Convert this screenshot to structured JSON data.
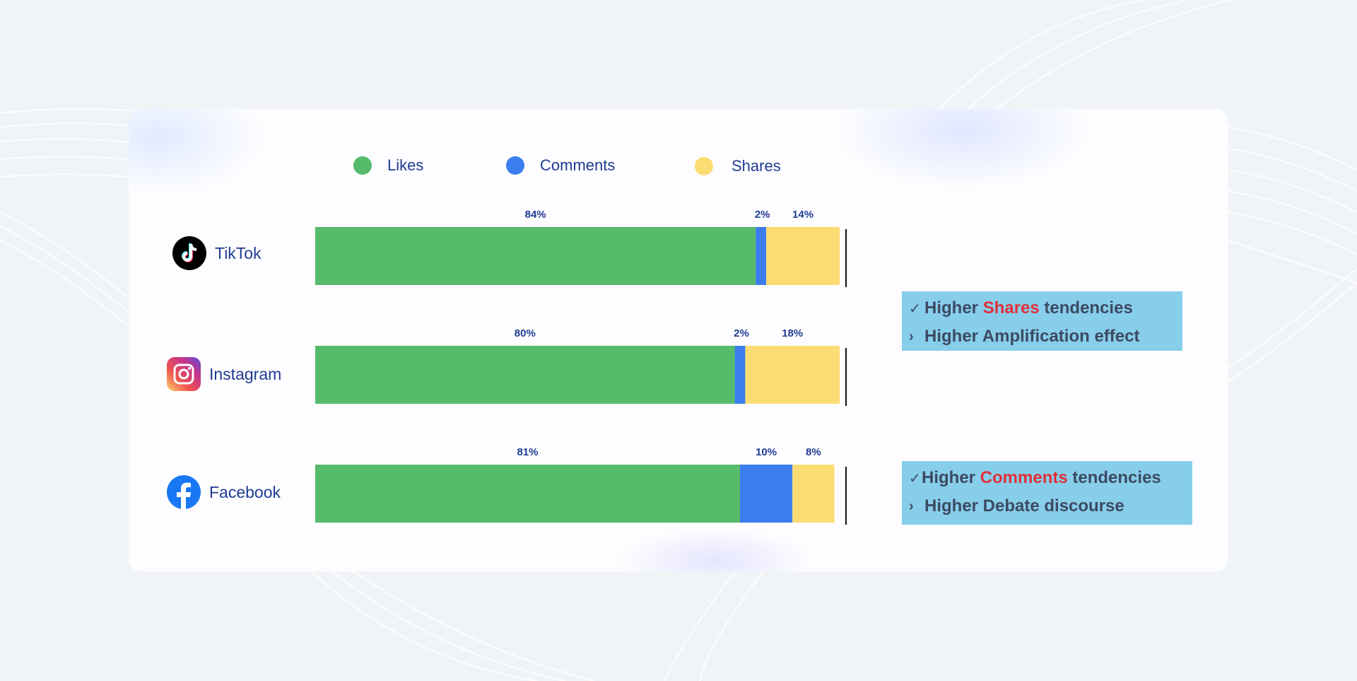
{
  "legend": [
    {
      "label": "Likes",
      "color": "#56bb6b"
    },
    {
      "label": "Comments",
      "color": "#3b7ded"
    },
    {
      "label": "Shares",
      "color": "#fbdc73"
    }
  ],
  "platforms": [
    {
      "name": "TikTok",
      "icon": "tiktok-logo-icon"
    },
    {
      "name": "Instagram",
      "icon": "instagram-logo-icon"
    },
    {
      "name": "Facebook",
      "icon": "facebook-logo-icon"
    }
  ],
  "notes": [
    {
      "line1": {
        "symbol": "✓",
        "prefix": "Higher ",
        "highlight": "Shares",
        "suffix": " tendencies"
      },
      "line2": {
        "symbol": "›",
        "text": "Higher Amplification effect"
      }
    },
    {
      "line1": {
        "symbol": "✓",
        "prefix": "Higher ",
        "highlight": "Comments",
        "suffix": " tendencies"
      },
      "line2": {
        "symbol": "›",
        "text": "Higher Debate discourse"
      }
    }
  ],
  "colors": {
    "highlight": "#e0303a",
    "note_bg": "#87ceeb",
    "label_text": "#1f3b93"
  },
  "chart_data": {
    "type": "bar",
    "orientation": "horizontal",
    "stacked": true,
    "categories": [
      "TikTok",
      "Instagram",
      "Facebook"
    ],
    "series": [
      {
        "name": "Likes",
        "values": [
          84,
          80,
          81
        ],
        "labels": [
          "84%",
          "80%",
          "81%"
        ],
        "color": "#56bb6b"
      },
      {
        "name": "Comments",
        "values": [
          2,
          2,
          10
        ],
        "labels": [
          "2%",
          "2%",
          "10%"
        ],
        "color": "#3b7ded"
      },
      {
        "name": "Shares",
        "values": [
          14,
          18,
          8
        ],
        "labels": [
          "14%",
          "18%",
          "8%"
        ],
        "color": "#fbdc73"
      }
    ],
    "xlim": [
      0,
      100
    ],
    "unit": "%",
    "grid": false,
    "legend_position": "top"
  }
}
